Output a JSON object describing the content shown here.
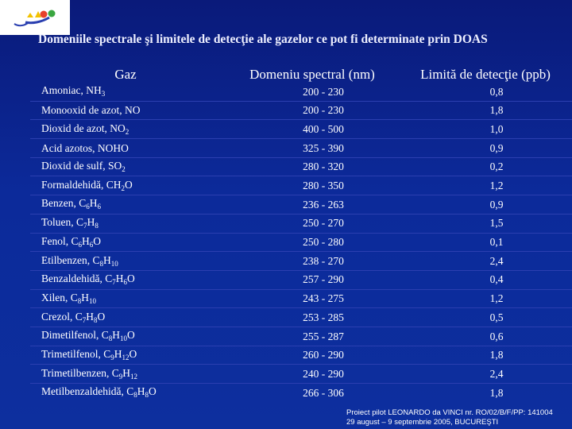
{
  "title": "Domeniile spectrale şi limitele de detecţie ale gazelor ce pot fi determinate prin DOAS",
  "columns": [
    "Gaz",
    "Domeniu spectral (nm)",
    "Limită de detecţie (ppb)"
  ],
  "rows": [
    {
      "gas": [
        {
          "t": "Amoniac, NH"
        },
        {
          "s": "3"
        }
      ],
      "range": "200 - 230",
      "limit": "0,8"
    },
    {
      "gas": [
        {
          "t": "Monooxid de azot, NO"
        }
      ],
      "range": "200 - 230",
      "limit": "1,8"
    },
    {
      "gas": [
        {
          "t": "Dioxid de azot, NO"
        },
        {
          "s": "2"
        }
      ],
      "range": "400 - 500",
      "limit": "1,0"
    },
    {
      "gas": [
        {
          "t": "Acid azotos, NOHO"
        }
      ],
      "range": "325 - 390",
      "limit": "0,9"
    },
    {
      "gas": [
        {
          "t": "Dioxid de sulf, SO"
        },
        {
          "s": "2"
        }
      ],
      "range": "280 - 320",
      "limit": "0,2"
    },
    {
      "gas": [
        {
          "t": "Formaldehidă, CH"
        },
        {
          "s": "2"
        },
        {
          "t": "O"
        }
      ],
      "range": "280 - 350",
      "limit": "1,2"
    },
    {
      "gas": [
        {
          "t": "Benzen, C"
        },
        {
          "s": "6"
        },
        {
          "t": "H"
        },
        {
          "s": "6"
        }
      ],
      "range": "236 - 263",
      "limit": "0,9"
    },
    {
      "gas": [
        {
          "t": "Toluen, C"
        },
        {
          "s": "7"
        },
        {
          "t": "H"
        },
        {
          "s": "8"
        }
      ],
      "range": "250 - 270",
      "limit": "1,5"
    },
    {
      "gas": [
        {
          "t": "Fenol, C"
        },
        {
          "s": "6"
        },
        {
          "t": "H"
        },
        {
          "s": "6"
        },
        {
          "t": "O"
        }
      ],
      "range": "250 - 280",
      "limit": "0,1"
    },
    {
      "gas": [
        {
          "t": "Etilbenzen, C"
        },
        {
          "s": "8"
        },
        {
          "t": "H"
        },
        {
          "s": "10"
        }
      ],
      "range": "238 - 270",
      "limit": "2,4"
    },
    {
      "gas": [
        {
          "t": "Benzaldehidă, C"
        },
        {
          "s": "7"
        },
        {
          "t": "H"
        },
        {
          "s": "6"
        },
        {
          "t": "O"
        }
      ],
      "range": "257 - 290",
      "limit": "0,4"
    },
    {
      "gas": [
        {
          "t": "Xilen, C"
        },
        {
          "s": "8"
        },
        {
          "t": "H"
        },
        {
          "s": "10"
        }
      ],
      "range": "243 - 275",
      "limit": "1,2"
    },
    {
      "gas": [
        {
          "t": "Crezol, C"
        },
        {
          "s": "7"
        },
        {
          "t": "H"
        },
        {
          "s": "8"
        },
        {
          "t": "O"
        }
      ],
      "range": "253 - 285",
      "limit": "0,5"
    },
    {
      "gas": [
        {
          "t": "Dimetilfenol, C"
        },
        {
          "s": "8"
        },
        {
          "t": "H"
        },
        {
          "s": "10"
        },
        {
          "t": "O"
        }
      ],
      "range": "255 - 287",
      "limit": "0,6"
    },
    {
      "gas": [
        {
          "t": "Trimetilfenol, C"
        },
        {
          "s": "9"
        },
        {
          "t": "H"
        },
        {
          "s": "12"
        },
        {
          "t": "O"
        }
      ],
      "range": "260 - 290",
      "limit": "1,8"
    },
    {
      "gas": [
        {
          "t": "Trimetilbenzen, C"
        },
        {
          "s": "9"
        },
        {
          "t": "H"
        },
        {
          "s": "12"
        }
      ],
      "range": "240 - 290",
      "limit": "2,4"
    },
    {
      "gas": [
        {
          "t": "Metilbenzaldehidă, C"
        },
        {
          "s": "8"
        },
        {
          "t": "H"
        },
        {
          "s": "8"
        },
        {
          "t": "O"
        }
      ],
      "range": "266 - 306",
      "limit": "1,8"
    }
  ],
  "footer": {
    "line1": "Proiect pilot LEONARDO da VINCI nr. RO/02/B/F/PP: 141004",
    "line2": "29 august – 9 septembrie 2005, BUCUREŞTI"
  },
  "colors": {
    "background": "#0c2a9a",
    "text": "#ffffff",
    "logo_yellow": "#f2c200",
    "logo_red": "#e8402a",
    "logo_green": "#3aa640",
    "logo_blue": "#2a3fb0"
  }
}
